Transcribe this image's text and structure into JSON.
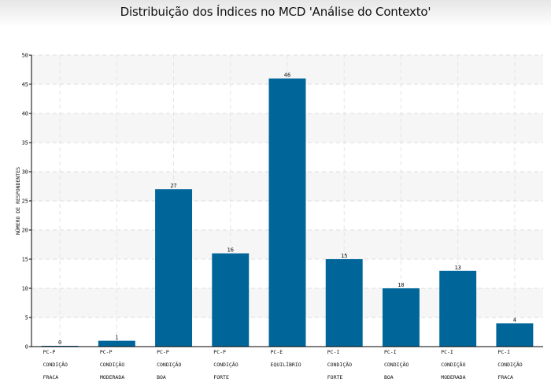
{
  "chart_data": {
    "type": "bar",
    "title": "Distribuição dos Índices no MCD 'Análise do Contexto'",
    "xlabel": "",
    "ylabel": "Número de respondentes",
    "ylim": [
      0,
      50
    ],
    "yticks": [
      0,
      5,
      10,
      15,
      20,
      25,
      30,
      35,
      40,
      45,
      50
    ],
    "grid": true,
    "categories": [
      [
        "PC-P",
        "Condição",
        "Fraca"
      ],
      [
        "PC-P",
        "Condição",
        "Moderada"
      ],
      [
        "PC-P",
        "Condição",
        "Boa"
      ],
      [
        "PC-P",
        "Condição",
        "Forte"
      ],
      [
        "PC-E",
        "Equilíbrio"
      ],
      [
        "PC-I",
        "Condição",
        "Forte"
      ],
      [
        "PC-I",
        "Condição",
        "Boa"
      ],
      [
        "PC-I",
        "Condição",
        "Moderada"
      ],
      [
        "PC-I",
        "Condição",
        "Fraca"
      ]
    ],
    "values": [
      0,
      1,
      27,
      16,
      46,
      15,
      10,
      13,
      4
    ],
    "bar_color": "#006699"
  }
}
